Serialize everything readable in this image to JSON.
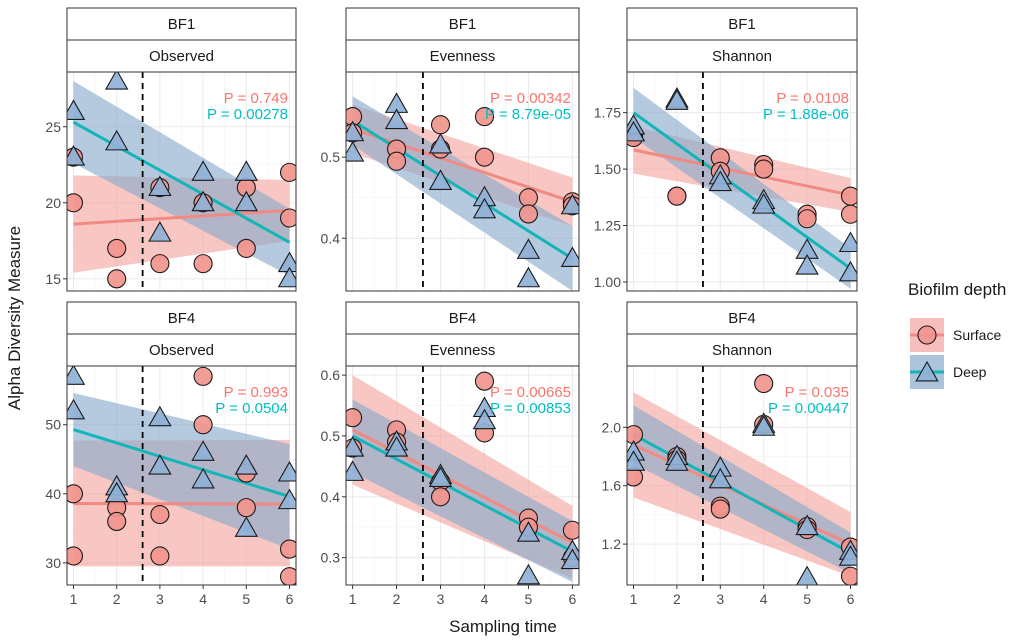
{
  "colors": {
    "surface_line": "#f08a82",
    "surface_band": "#f4a49e",
    "surface_point": "#f2958e",
    "deep_line": "#12b5b8",
    "deep_band": "#87a9cc",
    "deep_point": "#8fb1d6",
    "pval_surface": "#f8766d",
    "pval_deep": "#00bfc4"
  },
  "chart_data": {
    "type": "scatter",
    "x_label": "Sampling time",
    "y_label": "Alpha Diversity Measure",
    "x_ticks": [
      1,
      2,
      3,
      4,
      5,
      6
    ],
    "x_range": [
      0.85,
      6.15
    ],
    "vline_x": 2.6,
    "legend": {
      "title": "Biofilm depth",
      "position": "right",
      "entries": [
        {
          "key": "surface",
          "label": "Surface",
          "shape": "circle"
        },
        {
          "key": "deep",
          "label": "Deep",
          "shape": "triangle"
        }
      ]
    },
    "panels": [
      {
        "row": 0,
        "col": 0,
        "strip1": "BF1",
        "strip2": "Observed",
        "ylim": [
          14.2,
          28.6
        ],
        "y_ticks": [
          15,
          20,
          25
        ],
        "pvals": {
          "surface": "P = 0.749",
          "deep": "P = 0.00278"
        },
        "surface": {
          "points": [
            [
              1,
              23
            ],
            [
              1,
              20
            ],
            [
              2,
              17
            ],
            [
              2,
              15
            ],
            [
              3,
              21
            ],
            [
              3,
              16
            ],
            [
              4,
              20
            ],
            [
              4,
              16
            ],
            [
              5,
              21
            ],
            [
              5,
              17
            ],
            [
              6,
              22
            ],
            [
              6,
              19
            ]
          ],
          "fit": [
            18.6,
            19.5
          ],
          "band_lo": [
            15.4,
            17.5
          ],
          "band_hi": [
            21.8,
            21.5
          ]
        },
        "deep": {
          "points": [
            [
              1,
              26
            ],
            [
              1,
              23
            ],
            [
              2,
              28
            ],
            [
              2,
              24
            ],
            [
              3,
              21
            ],
            [
              3,
              18
            ],
            [
              4,
              22
            ],
            [
              4,
              20
            ],
            [
              5,
              22
            ],
            [
              5,
              20
            ],
            [
              6,
              16
            ],
            [
              6,
              15
            ]
          ],
          "fit": [
            25.3,
            17.4
          ],
          "band_lo": [
            22.6,
            15.2
          ],
          "band_hi": [
            28.0,
            19.6
          ]
        }
      },
      {
        "row": 0,
        "col": 1,
        "strip1": "BF1",
        "strip2": "Evenness",
        "ylim": [
          0.335,
          0.605
        ],
        "y_ticks": [
          0.4,
          0.5
        ],
        "pvals": {
          "surface": "P = 0.00342",
          "deep": "P = 8.79e-05"
        },
        "surface": {
          "points": [
            [
              1,
              0.55
            ],
            [
              1,
              0.53
            ],
            [
              2,
              0.51
            ],
            [
              2,
              0.495
            ],
            [
              3,
              0.54
            ],
            [
              3,
              0.51
            ],
            [
              4,
              0.55
            ],
            [
              4,
              0.5
            ],
            [
              5,
              0.45
            ],
            [
              5,
              0.43
            ],
            [
              6,
              0.445
            ],
            [
              6,
              0.44
            ]
          ],
          "fit": [
            0.535,
            0.445
          ],
          "band_lo": [
            0.505,
            0.415
          ],
          "band_hi": [
            0.565,
            0.475
          ]
        },
        "deep": {
          "points": [
            [
              1,
              0.53
            ],
            [
              1,
              0.505
            ],
            [
              2,
              0.565
            ],
            [
              2,
              0.545
            ],
            [
              3,
              0.515
            ],
            [
              3,
              0.47
            ],
            [
              4,
              0.45
            ],
            [
              4,
              0.435
            ],
            [
              5,
              0.385
            ],
            [
              5,
              0.35
            ],
            [
              6,
              0.44
            ],
            [
              6,
              0.375
            ]
          ],
          "fit": [
            0.545,
            0.375
          ],
          "band_lo": [
            0.515,
            0.335
          ],
          "band_hi": [
            0.575,
            0.415
          ]
        }
      },
      {
        "row": 0,
        "col": 2,
        "strip1": "BF1",
        "strip2": "Shannon",
        "ylim": [
          0.96,
          1.93
        ],
        "y_ticks": [
          1.0,
          1.25,
          1.5,
          1.75
        ],
        "y_tick_labels": [
          "1.00",
          "1.25",
          "1.50",
          "1.75"
        ],
        "pvals": {
          "surface": "P = 0.0108",
          "deep": "P = 1.88e-06"
        },
        "surface": {
          "points": [
            [
              1,
              1.65
            ],
            [
              1,
              1.64
            ],
            [
              2,
              1.38
            ],
            [
              2,
              1.38
            ],
            [
              3,
              1.55
            ],
            [
              3,
              1.49
            ],
            [
              4,
              1.52
            ],
            [
              4,
              1.5
            ],
            [
              5,
              1.3
            ],
            [
              5,
              1.28
            ],
            [
              6,
              1.38
            ],
            [
              6,
              1.3
            ]
          ],
          "fit": [
            1.585,
            1.385
          ],
          "band_lo": [
            1.48,
            1.31
          ],
          "band_hi": [
            1.69,
            1.46
          ]
        },
        "deep": {
          "points": [
            [
              1,
              1.69
            ],
            [
              1,
              1.66
            ],
            [
              2,
              1.81
            ],
            [
              2,
              1.8
            ],
            [
              3,
              1.47
            ],
            [
              3,
              1.44
            ],
            [
              4,
              1.36
            ],
            [
              4,
              1.34
            ],
            [
              5,
              1.14
            ],
            [
              5,
              1.07
            ],
            [
              6,
              1.17
            ],
            [
              6,
              1.04
            ]
          ],
          "fit": [
            1.75,
            1.06
          ],
          "band_lo": [
            1.64,
            0.97
          ],
          "band_hi": [
            1.86,
            1.15
          ]
        }
      },
      {
        "row": 1,
        "col": 0,
        "strip1": "BF4",
        "strip2": "Observed",
        "ylim": [
          26.8,
          58.5
        ],
        "y_ticks": [
          30,
          40,
          50
        ],
        "pvals": {
          "surface": "P = 0.993",
          "deep": "P = 0.0504"
        },
        "surface": {
          "points": [
            [
              1,
              40
            ],
            [
              1,
              31
            ],
            [
              2,
              38
            ],
            [
              2,
              36
            ],
            [
              3,
              37
            ],
            [
              3,
              31
            ],
            [
              4,
              57
            ],
            [
              4,
              50
            ],
            [
              5,
              43
            ],
            [
              5,
              38
            ],
            [
              6,
              32
            ],
            [
              6,
              28
            ]
          ],
          "fit": [
            38.6,
            38.5
          ],
          "band_lo": [
            29.5,
            29.5
          ],
          "band_hi": [
            47.7,
            47.8
          ]
        },
        "deep": {
          "points": [
            [
              1,
              57
            ],
            [
              1,
              52
            ],
            [
              2,
              41
            ],
            [
              2,
              40
            ],
            [
              3,
              51
            ],
            [
              3,
              44
            ],
            [
              4,
              46
            ],
            [
              4,
              42
            ],
            [
              5,
              44
            ],
            [
              5,
              35
            ],
            [
              6,
              43
            ],
            [
              6,
              39
            ]
          ],
          "fit": [
            49.3,
            39.6
          ],
          "band_lo": [
            44.0,
            32.0
          ],
          "band_hi": [
            54.6,
            47.2
          ]
        }
      },
      {
        "row": 1,
        "col": 1,
        "strip1": "BF4",
        "strip2": "Evenness",
        "ylim": [
          0.255,
          0.615
        ],
        "y_ticks": [
          0.3,
          0.4,
          0.5,
          0.6
        ],
        "pvals": {
          "surface": "P = 0.00665",
          "deep": "P = 0.00853"
        },
        "surface": {
          "points": [
            [
              1,
              0.53
            ],
            [
              1,
              0.48
            ],
            [
              2,
              0.51
            ],
            [
              2,
              0.49
            ],
            [
              3,
              0.425
            ],
            [
              3,
              0.4
            ],
            [
              4,
              0.59
            ],
            [
              4,
              0.505
            ],
            [
              5,
              0.365
            ],
            [
              5,
              0.35
            ],
            [
              6,
              0.345
            ],
            [
              6,
              0.3
            ]
          ],
          "fit": [
            0.51,
            0.325
          ],
          "band_lo": [
            0.42,
            0.265
          ],
          "band_hi": [
            0.6,
            0.385
          ]
        },
        "deep": {
          "points": [
            [
              1,
              0.48
            ],
            [
              1,
              0.44
            ],
            [
              2,
              0.49
            ],
            [
              2,
              0.48
            ],
            [
              3,
              0.435
            ],
            [
              3,
              0.43
            ],
            [
              4,
              0.545
            ],
            [
              4,
              0.525
            ],
            [
              5,
              0.34
            ],
            [
              5,
              0.27
            ],
            [
              6,
              0.31
            ],
            [
              6,
              0.295
            ]
          ],
          "fit": [
            0.5,
            0.31
          ],
          "band_lo": [
            0.44,
            0.26
          ],
          "band_hi": [
            0.56,
            0.36
          ]
        }
      },
      {
        "row": 1,
        "col": 2,
        "strip1": "BF4",
        "strip2": "Shannon",
        "ylim": [
          0.92,
          2.42
        ],
        "y_ticks": [
          1.2,
          1.6,
          2.0
        ],
        "y_tick_labels": [
          "1.2",
          "1.6",
          "2.0"
        ],
        "pvals": {
          "surface": "P = 0.035",
          "deep": "P = 0.00447"
        },
        "surface": {
          "points": [
            [
              1,
              1.95
            ],
            [
              1,
              1.66
            ],
            [
              2,
              1.8
            ],
            [
              2,
              1.78
            ],
            [
              3,
              1.46
            ],
            [
              3,
              1.44
            ],
            [
              4,
              2.3
            ],
            [
              4,
              2.02
            ],
            [
              5,
              1.32
            ],
            [
              5,
              1.3
            ],
            [
              6,
              1.18
            ],
            [
              6,
              0.98
            ]
          ],
          "fit": [
            1.88,
            1.2
          ],
          "band_lo": [
            1.52,
            0.98
          ],
          "band_hi": [
            2.24,
            1.42
          ]
        },
        "deep": {
          "points": [
            [
              1,
              1.83
            ],
            [
              1,
              1.76
            ],
            [
              2,
              1.8
            ],
            [
              2,
              1.76
            ],
            [
              3,
              1.72
            ],
            [
              3,
              1.64
            ],
            [
              4,
              2.02
            ],
            [
              4,
              2.0
            ],
            [
              5,
              1.32
            ],
            [
              5,
              0.97
            ],
            [
              6,
              1.15
            ],
            [
              6,
              1.11
            ]
          ],
          "fit": [
            1.95,
            1.14
          ],
          "band_lo": [
            1.75,
            1.0
          ],
          "band_hi": [
            2.15,
            1.28
          ]
        }
      }
    ]
  }
}
